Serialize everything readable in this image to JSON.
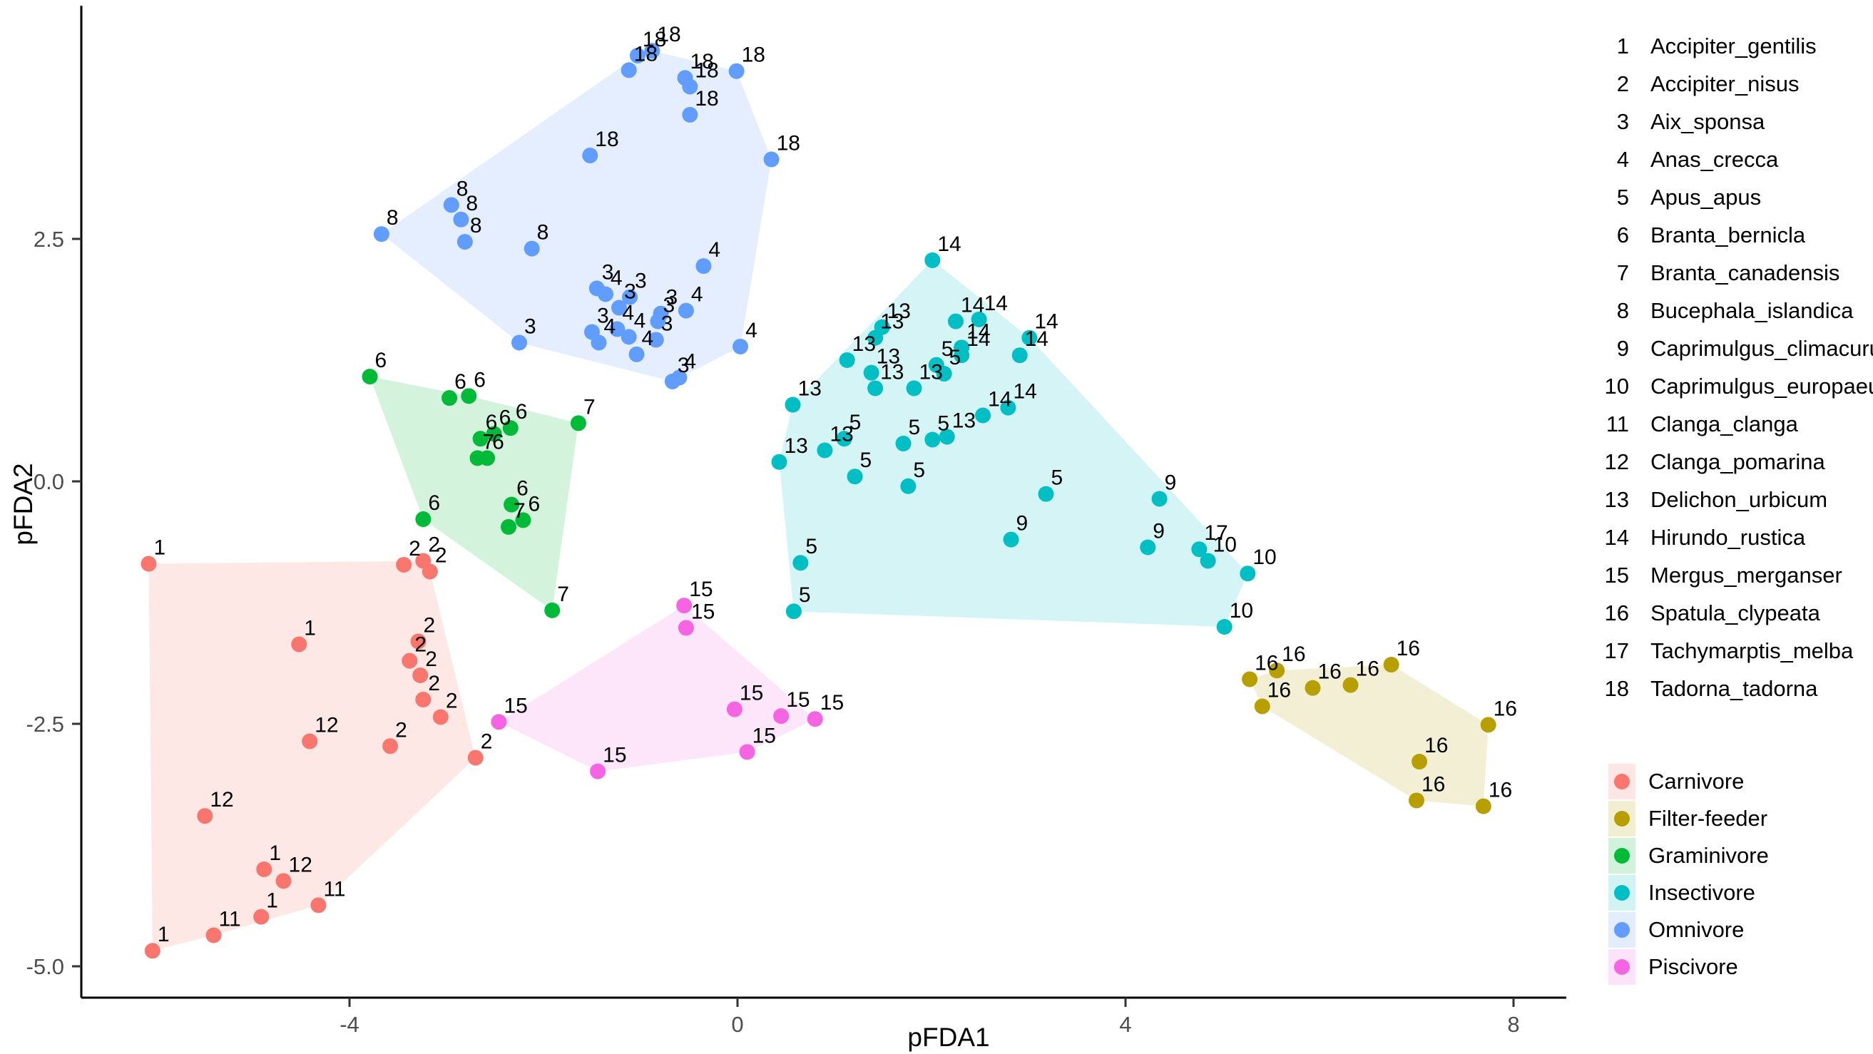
{
  "chart_data": {
    "type": "scatter",
    "title": "",
    "xlabel": "pFDA1",
    "ylabel": "pFDA2",
    "grid": false,
    "x_ticks": [
      {
        "v": -4,
        "label": "-4"
      },
      {
        "v": 0,
        "label": "0"
      },
      {
        "v": 4,
        "label": "4"
      },
      {
        "v": 8,
        "label": "8"
      }
    ],
    "y_ticks": [
      {
        "v": 2.5,
        "label": "2.5"
      },
      {
        "v": 0.0,
        "label": "0.0"
      },
      {
        "v": -2.5,
        "label": "-2.5"
      },
      {
        "v": -5.0,
        "label": "-5.0"
      }
    ],
    "xlim": [
      -6.8,
      8.55
    ],
    "ylim": [
      -5.35,
      4.9
    ],
    "point_label_source": "species id numbers shown next to each point",
    "species_legend": [
      {
        "id": "1",
        "name": "Accipiter_gentilis"
      },
      {
        "id": "2",
        "name": "Accipiter_nisus"
      },
      {
        "id": "3",
        "name": "Aix_sponsa"
      },
      {
        "id": "4",
        "name": "Anas_crecca"
      },
      {
        "id": "5",
        "name": "Apus_apus"
      },
      {
        "id": "6",
        "name": "Branta_bernicla"
      },
      {
        "id": "7",
        "name": "Branta_canadensis"
      },
      {
        "id": "8",
        "name": "Bucephala_islandica"
      },
      {
        "id": "9",
        "name": "Caprimulgus_climacurus"
      },
      {
        "id": "10",
        "name": "Caprimulgus_europaeus"
      },
      {
        "id": "11",
        "name": "Clanga_clanga"
      },
      {
        "id": "12",
        "name": "Clanga_pomarina"
      },
      {
        "id": "13",
        "name": "Delichon_urbicum"
      },
      {
        "id": "14",
        "name": "Hirundo_rustica"
      },
      {
        "id": "15",
        "name": "Mergus_merganser"
      },
      {
        "id": "16",
        "name": "Spatula_clypeata"
      },
      {
        "id": "17",
        "name": "Tachymarptis_melba"
      },
      {
        "id": "18",
        "name": "Tadorna_tadorna"
      }
    ],
    "diet_legend": [
      {
        "label": "Carnivore",
        "color": "#F8766D"
      },
      {
        "label": "Filter-feeder",
        "color": "#B79F00"
      },
      {
        "label": "Graminivore",
        "color": "#00BA38"
      },
      {
        "label": "Insectivore",
        "color": "#00BFC4"
      },
      {
        "label": "Omnivore",
        "color": "#619CFF"
      },
      {
        "label": "Piscivore",
        "color": "#F564E3"
      }
    ],
    "hull_opacity": 0.17,
    "series": [
      {
        "name": "Carnivore",
        "color": "#F8766D",
        "points": [
          {
            "s": "1",
            "x": -6.07,
            "y": -0.85
          },
          {
            "s": "2",
            "x": -3.44,
            "y": -0.86
          },
          {
            "s": "2",
            "x": -3.24,
            "y": -0.82
          },
          {
            "s": "2",
            "x": -3.17,
            "y": -0.93
          },
          {
            "s": "1",
            "x": -4.52,
            "y": -1.68
          },
          {
            "s": "2",
            "x": -3.29,
            "y": -1.65
          },
          {
            "s": "2",
            "x": -3.38,
            "y": -1.85
          },
          {
            "s": "2",
            "x": -3.27,
            "y": -2.0
          },
          {
            "s": "2",
            "x": -3.24,
            "y": -2.25
          },
          {
            "s": "2",
            "x": -3.06,
            "y": -2.43
          },
          {
            "s": "12",
            "x": -4.41,
            "y": -2.68
          },
          {
            "s": "2",
            "x": -3.58,
            "y": -2.73
          },
          {
            "s": "2",
            "x": -2.7,
            "y": -2.85
          },
          {
            "s": "12",
            "x": -5.49,
            "y": -3.45
          },
          {
            "s": "1",
            "x": -4.88,
            "y": -4.0
          },
          {
            "s": "12",
            "x": -4.68,
            "y": -4.12
          },
          {
            "s": "11",
            "x": -4.32,
            "y": -4.37
          },
          {
            "s": "1",
            "x": -4.91,
            "y": -4.49
          },
          {
            "s": "11",
            "x": -5.4,
            "y": -4.68
          },
          {
            "s": "1",
            "x": -6.03,
            "y": -4.84
          }
        ]
      },
      {
        "name": "Filter-feeder",
        "color": "#B79F00",
        "points": [
          {
            "s": "16",
            "x": 5.28,
            "y": -2.04
          },
          {
            "s": "16",
            "x": 5.56,
            "y": -1.95
          },
          {
            "s": "16",
            "x": 5.41,
            "y": -2.32
          },
          {
            "s": "16",
            "x": 5.93,
            "y": -2.13
          },
          {
            "s": "16",
            "x": 6.32,
            "y": -2.1
          },
          {
            "s": "16",
            "x": 6.74,
            "y": -1.89
          },
          {
            "s": "16",
            "x": 7.74,
            "y": -2.51
          },
          {
            "s": "16",
            "x": 7.03,
            "y": -2.89
          },
          {
            "s": "16",
            "x": 7.0,
            "y": -3.29
          },
          {
            "s": "16",
            "x": 7.69,
            "y": -3.35
          }
        ]
      },
      {
        "name": "Graminivore",
        "color": "#00BA38",
        "points": [
          {
            "s": "6",
            "x": -3.79,
            "y": 1.08
          },
          {
            "s": "6",
            "x": -2.97,
            "y": 0.86
          },
          {
            "s": "6",
            "x": -2.77,
            "y": 0.88
          },
          {
            "s": "7",
            "x": -1.64,
            "y": 0.6
          },
          {
            "s": "6",
            "x": -2.34,
            "y": 0.55
          },
          {
            "s": "6",
            "x": -2.51,
            "y": 0.49
          },
          {
            "s": "6",
            "x": -2.65,
            "y": 0.44
          },
          {
            "s": "7",
            "x": -2.68,
            "y": 0.24
          },
          {
            "s": "6",
            "x": -2.58,
            "y": 0.24
          },
          {
            "s": "6",
            "x": -2.33,
            "y": -0.24
          },
          {
            "s": "6",
            "x": -3.24,
            "y": -0.39
          },
          {
            "s": "6",
            "x": -2.21,
            "y": -0.4
          },
          {
            "s": "7",
            "x": -2.36,
            "y": -0.47
          },
          {
            "s": "7",
            "x": -1.91,
            "y": -1.33
          }
        ]
      },
      {
        "name": "Insectivore",
        "color": "#00BFC4",
        "points": [
          {
            "s": "14",
            "x": 2.01,
            "y": 2.28
          },
          {
            "s": "14",
            "x": 2.25,
            "y": 1.65
          },
          {
            "s": "14",
            "x": 2.49,
            "y": 1.67
          },
          {
            "s": "13",
            "x": 1.49,
            "y": 1.59
          },
          {
            "s": "13",
            "x": 1.42,
            "y": 1.48
          },
          {
            "s": "14",
            "x": 3.01,
            "y": 1.48
          },
          {
            "s": "14",
            "x": 2.31,
            "y": 1.38
          },
          {
            "s": "14",
            "x": 2.31,
            "y": 1.3
          },
          {
            "s": "14",
            "x": 2.91,
            "y": 1.3
          },
          {
            "s": "13",
            "x": 1.13,
            "y": 1.25
          },
          {
            "s": "5",
            "x": 2.05,
            "y": 1.2
          },
          {
            "s": "13",
            "x": 1.38,
            "y": 1.12
          },
          {
            "s": "5",
            "x": 2.13,
            "y": 1.11
          },
          {
            "s": "13",
            "x": 1.42,
            "y": 0.96
          },
          {
            "s": "13",
            "x": 1.82,
            "y": 0.96
          },
          {
            "s": "13",
            "x": 0.57,
            "y": 0.79
          },
          {
            "s": "14",
            "x": 2.79,
            "y": 0.76
          },
          {
            "s": "14",
            "x": 2.53,
            "y": 0.68
          },
          {
            "s": "13",
            "x": 2.16,
            "y": 0.46
          },
          {
            "s": "5",
            "x": 1.1,
            "y": 0.44
          },
          {
            "s": "5",
            "x": 2.01,
            "y": 0.43
          },
          {
            "s": "5",
            "x": 1.71,
            "y": 0.39
          },
          {
            "s": "13",
            "x": 0.9,
            "y": 0.32
          },
          {
            "s": "13",
            "x": 0.43,
            "y": 0.2
          },
          {
            "s": "5",
            "x": 1.21,
            "y": 0.05
          },
          {
            "s": "5",
            "x": 1.76,
            "y": -0.05
          },
          {
            "s": "5",
            "x": 3.18,
            "y": -0.13
          },
          {
            "s": "9",
            "x": 4.35,
            "y": -0.18
          },
          {
            "s": "9",
            "x": 2.82,
            "y": -0.6
          },
          {
            "s": "9",
            "x": 4.23,
            "y": -0.68
          },
          {
            "s": "17",
            "x": 4.76,
            "y": -0.7
          },
          {
            "s": "10",
            "x": 4.85,
            "y": -0.82
          },
          {
            "s": "5",
            "x": 0.65,
            "y": -0.84
          },
          {
            "s": "10",
            "x": 5.26,
            "y": -0.95
          },
          {
            "s": "5",
            "x": 0.58,
            "y": -1.34
          },
          {
            "s": "10",
            "x": 5.02,
            "y": -1.5
          }
        ]
      },
      {
        "name": "Omnivore",
        "color": "#619CFF",
        "points": [
          {
            "s": "18",
            "x": -0.88,
            "y": 4.44
          },
          {
            "s": "18",
            "x": -1.03,
            "y": 4.39
          },
          {
            "s": "18",
            "x": -1.12,
            "y": 4.24
          },
          {
            "s": "18",
            "x": -0.01,
            "y": 4.23
          },
          {
            "s": "18",
            "x": -0.54,
            "y": 4.16
          },
          {
            "s": "18",
            "x": -0.49,
            "y": 4.07
          },
          {
            "s": "18",
            "x": -0.49,
            "y": 3.78
          },
          {
            "s": "18",
            "x": -1.52,
            "y": 3.36
          },
          {
            "s": "18",
            "x": 0.35,
            "y": 3.32
          },
          {
            "s": "8",
            "x": -2.95,
            "y": 2.85
          },
          {
            "s": "8",
            "x": -2.85,
            "y": 2.7
          },
          {
            "s": "8",
            "x": -3.67,
            "y": 2.55
          },
          {
            "s": "8",
            "x": -2.81,
            "y": 2.47
          },
          {
            "s": "8",
            "x": -2.12,
            "y": 2.4
          },
          {
            "s": "4",
            "x": -0.35,
            "y": 2.22
          },
          {
            "s": "3",
            "x": -1.45,
            "y": 1.99
          },
          {
            "s": "4",
            "x": -1.36,
            "y": 1.93
          },
          {
            "s": "3",
            "x": -1.11,
            "y": 1.9
          },
          {
            "s": "3",
            "x": -1.22,
            "y": 1.79
          },
          {
            "s": "4",
            "x": -0.53,
            "y": 1.76
          },
          {
            "s": "3",
            "x": -0.79,
            "y": 1.73
          },
          {
            "s": "3",
            "x": -0.82,
            "y": 1.65
          },
          {
            "s": "4",
            "x": -1.24,
            "y": 1.57
          },
          {
            "s": "3",
            "x": -1.5,
            "y": 1.54
          },
          {
            "s": "4",
            "x": -1.12,
            "y": 1.49
          },
          {
            "s": "3",
            "x": -0.84,
            "y": 1.46
          },
          {
            "s": "4",
            "x": -1.43,
            "y": 1.43
          },
          {
            "s": "3",
            "x": -2.25,
            "y": 1.43
          },
          {
            "s": "4",
            "x": 0.03,
            "y": 1.39
          },
          {
            "s": "4",
            "x": -1.04,
            "y": 1.31
          },
          {
            "s": "4",
            "x": -0.6,
            "y": 1.07
          },
          {
            "s": "3",
            "x": -0.67,
            "y": 1.03
          }
        ]
      },
      {
        "name": "Piscivore",
        "color": "#F564E3",
        "points": [
          {
            "s": "15",
            "x": -0.55,
            "y": -1.28
          },
          {
            "s": "15",
            "x": -0.53,
            "y": -1.51
          },
          {
            "s": "15",
            "x": -2.46,
            "y": -2.48
          },
          {
            "s": "15",
            "x": -0.03,
            "y": -2.35
          },
          {
            "s": "15",
            "x": 0.45,
            "y": -2.42
          },
          {
            "s": "15",
            "x": 0.8,
            "y": -2.45
          },
          {
            "s": "15",
            "x": 0.1,
            "y": -2.79
          },
          {
            "s": "15",
            "x": -1.44,
            "y": -2.99
          }
        ]
      }
    ]
  }
}
